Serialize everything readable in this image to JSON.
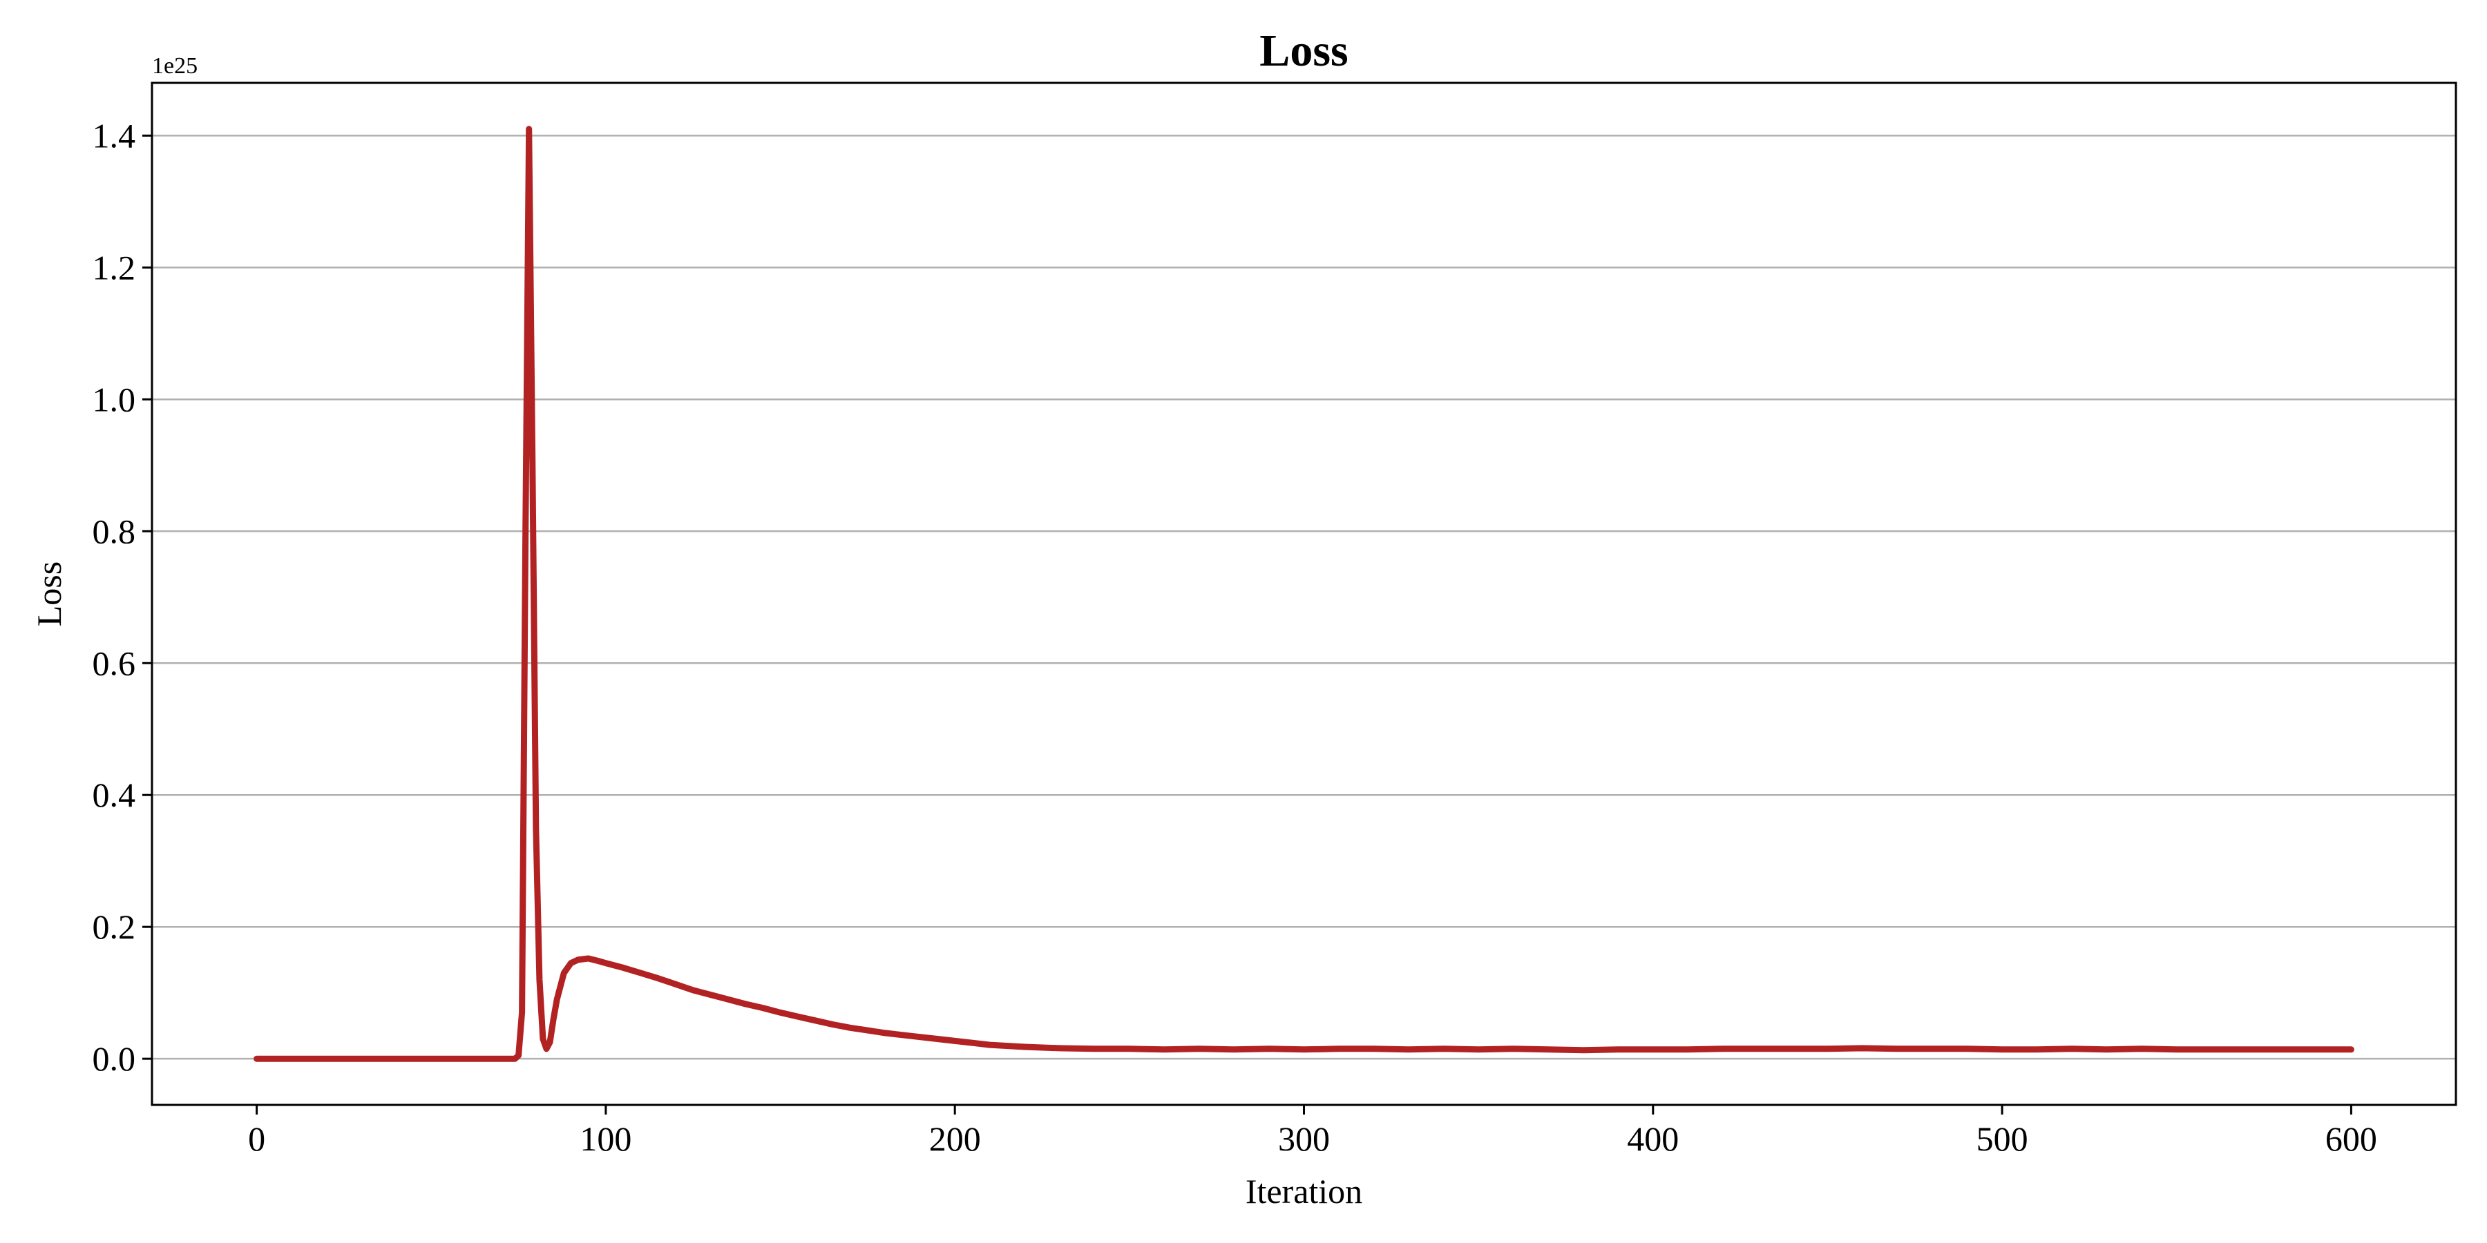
{
  "chart_data": {
    "type": "line",
    "title": "Loss",
    "xlabel": "Iteration",
    "ylabel": "Loss",
    "y_offset_label": "1e25",
    "y_scale_factor": 1e+25,
    "xlim": [
      -30,
      630
    ],
    "ylim": [
      -0.07,
      1.48
    ],
    "x_ticks": [
      0,
      100,
      200,
      300,
      400,
      500,
      600
    ],
    "x_tick_labels": [
      "0",
      "100",
      "200",
      "300",
      "400",
      "500",
      "600"
    ],
    "y_ticks": [
      0.0,
      0.2,
      0.4,
      0.6,
      0.8,
      1.0,
      1.2,
      1.4
    ],
    "y_tick_labels": [
      "0.0",
      "0.2",
      "0.4",
      "0.6",
      "0.8",
      "1.0",
      "1.2",
      "1.4"
    ],
    "grid": "y-major",
    "legend": "none",
    "series": [
      {
        "color": "#b22222",
        "x": [
          0,
          74,
          75,
          76,
          77,
          78,
          79,
          80,
          81,
          82,
          83,
          84,
          85,
          86,
          88,
          90,
          92,
          95,
          98,
          100,
          105,
          110,
          115,
          120,
          125,
          130,
          135,
          140,
          145,
          150,
          155,
          160,
          165,
          170,
          175,
          180,
          185,
          190,
          195,
          200,
          205,
          210,
          220,
          230,
          240,
          250,
          260,
          270,
          280,
          290,
          300,
          310,
          320,
          330,
          340,
          350,
          360,
          370,
          380,
          390,
          400,
          410,
          420,
          430,
          440,
          450,
          460,
          470,
          480,
          490,
          500,
          510,
          520,
          530,
          540,
          550,
          560,
          570,
          580,
          590,
          600
        ],
        "y": [
          0.0,
          0.0,
          0.005,
          0.07,
          0.8,
          1.41,
          0.9,
          0.35,
          0.12,
          0.03,
          0.015,
          0.025,
          0.06,
          0.09,
          0.13,
          0.145,
          0.15,
          0.152,
          0.148,
          0.145,
          0.138,
          0.13,
          0.122,
          0.113,
          0.104,
          0.097,
          0.09,
          0.083,
          0.077,
          0.07,
          0.064,
          0.058,
          0.052,
          0.047,
          0.043,
          0.039,
          0.036,
          0.033,
          0.03,
          0.027,
          0.024,
          0.021,
          0.018,
          0.016,
          0.015,
          0.015,
          0.014,
          0.015,
          0.014,
          0.015,
          0.014,
          0.015,
          0.015,
          0.014,
          0.015,
          0.014,
          0.015,
          0.014,
          0.013,
          0.014,
          0.014,
          0.014,
          0.015,
          0.015,
          0.015,
          0.015,
          0.016,
          0.015,
          0.015,
          0.015,
          0.014,
          0.014,
          0.015,
          0.014,
          0.015,
          0.014,
          0.014,
          0.014,
          0.014,
          0.014,
          0.014
        ]
      }
    ]
  }
}
